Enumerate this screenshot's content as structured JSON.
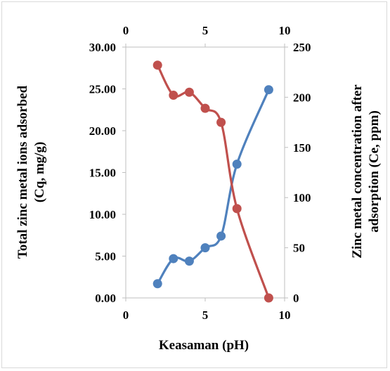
{
  "chart_data": {
    "type": "line",
    "title": "",
    "xlabel": "Keasaman (pH)",
    "ylabel_left": [
      "Total zinc metal ions adsorbed",
      "(Cq, mg/g)"
    ],
    "ylabel_right": [
      "Zinc metal concentration after",
      "adsorption (Ce, ppm)"
    ],
    "xlim": [
      0,
      10
    ],
    "x_ticks": [
      "0",
      "5",
      "10"
    ],
    "x_ticks_top": [
      "0",
      "5",
      "10"
    ],
    "ylim_left": [
      0,
      30
    ],
    "y_ticks_left": [
      "0.00",
      "5.00",
      "10.00",
      "15.00",
      "20.00",
      "25.00",
      "30.00"
    ],
    "ylim_right": [
      0,
      250
    ],
    "y_ticks_right": [
      "0",
      "50",
      "100",
      "150",
      "200",
      "250"
    ],
    "grid": false,
    "series": [
      {
        "axis": "left",
        "color": "#4f81bd",
        "x": [
          2,
          3,
          4,
          5,
          6,
          7,
          9
        ],
        "values": [
          1.7,
          4.7,
          4.4,
          6.0,
          7.4,
          16.0,
          24.9
        ]
      },
      {
        "axis": "right",
        "color": "#c0504d",
        "x": [
          2,
          3,
          4,
          5,
          6,
          7,
          9
        ],
        "values": [
          232,
          202,
          205,
          189,
          175,
          89,
          0
        ]
      }
    ]
  }
}
